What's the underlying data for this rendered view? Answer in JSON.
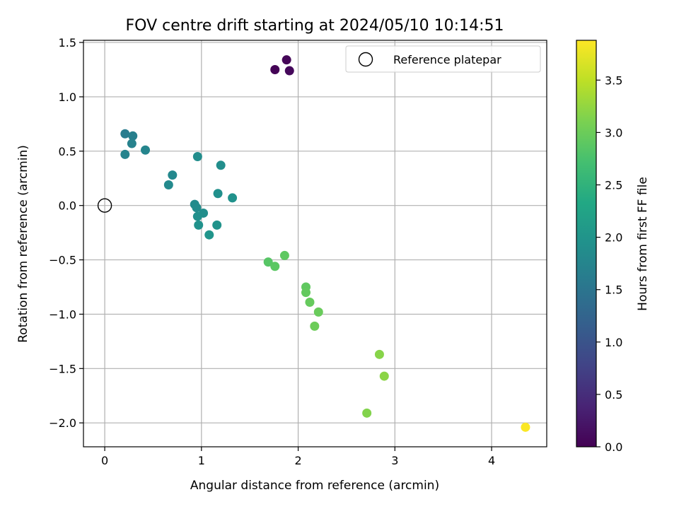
{
  "chart_data": {
    "type": "scatter",
    "title": "FOV centre drift starting at 2024/05/10 10:14:51",
    "xlabel": "Angular distance from reference (arcmin)",
    "ylabel": "Rotation from reference (arcmin)",
    "xlim": [
      -0.22,
      4.57
    ],
    "ylim": [
      -2.22,
      1.52
    ],
    "xticks": [
      0,
      1,
      2,
      3,
      4
    ],
    "xtick_labels": [
      "0",
      "1",
      "2",
      "3",
      "4"
    ],
    "yticks": [
      -2.0,
      -1.5,
      -1.0,
      -0.5,
      0.0,
      0.5,
      1.0,
      1.5
    ],
    "ytick_labels": [
      "−2.0",
      "−1.5",
      "−1.0",
      "−0.5",
      "0.0",
      "0.5",
      "1.0",
      "1.5"
    ],
    "grid": true,
    "legend": {
      "location": "upper right",
      "entries": [
        "Reference platepar"
      ]
    },
    "reference_point": {
      "label": "Reference platepar",
      "x": 0.0,
      "y": 0.0,
      "marker": "open-circle"
    },
    "colorbar": {
      "label": "Hours from first FF file",
      "colormap": "viridis",
      "range": [
        0.0,
        3.88
      ],
      "ticks": [
        0.0,
        0.5,
        1.0,
        1.5,
        2.0,
        2.5,
        3.0,
        3.5
      ],
      "tick_labels": [
        "0.0",
        "0.5",
        "1.0",
        "1.5",
        "2.0",
        "2.5",
        "3.0",
        "3.5"
      ]
    },
    "series": [
      {
        "points": [
          {
            "x": 1.76,
            "y": 1.25,
            "c": 0.02
          },
          {
            "x": 1.88,
            "y": 1.34,
            "c": 0.05
          },
          {
            "x": 1.91,
            "y": 1.24,
            "c": 0.08
          },
          {
            "x": 0.21,
            "y": 0.66,
            "c": 1.62
          },
          {
            "x": 0.29,
            "y": 0.64,
            "c": 1.66
          },
          {
            "x": 0.28,
            "y": 0.57,
            "c": 1.7
          },
          {
            "x": 0.21,
            "y": 0.47,
            "c": 1.72
          },
          {
            "x": 0.42,
            "y": 0.51,
            "c": 1.76
          },
          {
            "x": 0.7,
            "y": 0.28,
            "c": 1.8
          },
          {
            "x": 0.66,
            "y": 0.19,
            "c": 1.83
          },
          {
            "x": 0.96,
            "y": 0.45,
            "c": 1.88
          },
          {
            "x": 1.2,
            "y": 0.37,
            "c": 1.9
          },
          {
            "x": 1.17,
            "y": 0.11,
            "c": 1.93
          },
          {
            "x": 1.32,
            "y": 0.07,
            "c": 1.95
          },
          {
            "x": 0.93,
            "y": 0.01,
            "c": 1.85
          },
          {
            "x": 0.95,
            "y": -0.02,
            "c": 1.87
          },
          {
            "x": 1.02,
            "y": -0.07,
            "c": 1.9
          },
          {
            "x": 0.96,
            "y": -0.1,
            "c": 1.92
          },
          {
            "x": 0.97,
            "y": -0.18,
            "c": 1.95
          },
          {
            "x": 1.16,
            "y": -0.18,
            "c": 1.98
          },
          {
            "x": 1.08,
            "y": -0.27,
            "c": 2.0
          },
          {
            "x": 1.69,
            "y": -0.52,
            "c": 2.85
          },
          {
            "x": 1.76,
            "y": -0.56,
            "c": 2.88
          },
          {
            "x": 1.86,
            "y": -0.46,
            "c": 2.9
          },
          {
            "x": 2.08,
            "y": -0.75,
            "c": 2.92
          },
          {
            "x": 2.08,
            "y": -0.8,
            "c": 2.94
          },
          {
            "x": 2.12,
            "y": -0.89,
            "c": 2.96
          },
          {
            "x": 2.21,
            "y": -0.98,
            "c": 2.98
          },
          {
            "x": 2.17,
            "y": -1.11,
            "c": 3.0
          },
          {
            "x": 2.84,
            "y": -1.37,
            "c": 3.18
          },
          {
            "x": 2.89,
            "y": -1.57,
            "c": 3.2
          },
          {
            "x": 2.71,
            "y": -1.91,
            "c": 3.15
          },
          {
            "x": 4.35,
            "y": -2.04,
            "c": 3.86
          }
        ]
      }
    ]
  }
}
